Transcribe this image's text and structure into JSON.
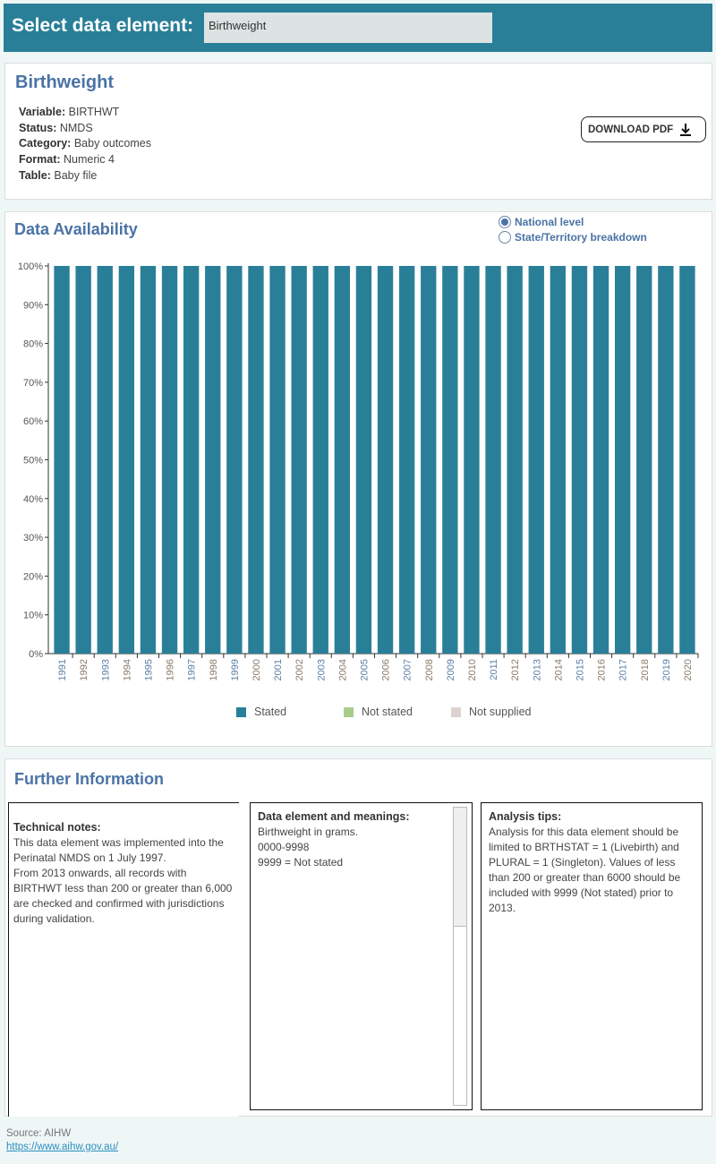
{
  "header": {
    "label": "Select data element:",
    "selected": "Birthweight"
  },
  "element": {
    "title": "Birthweight",
    "fields": [
      {
        "label": "Variable:",
        "value": "BIRTHWT"
      },
      {
        "label": "Status:",
        "value": "NMDS"
      },
      {
        "label": "Category:",
        "value": "Baby outcomes"
      },
      {
        "label": "Format:",
        "value": "Numeric 4"
      },
      {
        "label": "Table:",
        "value": "Baby file"
      }
    ],
    "download_label": "DOWNLOAD PDF"
  },
  "availability": {
    "title": "Data Availability",
    "radios": [
      {
        "label": "National level",
        "selected": true
      },
      {
        "label": "State/Territory breakdown",
        "selected": false
      }
    ]
  },
  "chart_data": {
    "type": "bar",
    "stacked": true,
    "categories": [
      "1991",
      "1992",
      "1993",
      "1994",
      "1995",
      "1996",
      "1997",
      "1998",
      "1999",
      "2000",
      "2001",
      "2002",
      "2003",
      "2004",
      "2005",
      "2006",
      "2007",
      "2008",
      "2009",
      "2010",
      "2011",
      "2012",
      "2013",
      "2014",
      "2015",
      "2016",
      "2017",
      "2018",
      "2019",
      "2020"
    ],
    "series": [
      {
        "name": "Stated",
        "color": "#2a7f98",
        "values": [
          100,
          100,
          100,
          100,
          100,
          100,
          100,
          100,
          100,
          100,
          100,
          100,
          100,
          100,
          100,
          100,
          100,
          100,
          100,
          100,
          100,
          100,
          100,
          100,
          100,
          100,
          100,
          100,
          100,
          100
        ]
      },
      {
        "name": "Not stated",
        "color": "#a8cc8c",
        "values": [
          0,
          0,
          0,
          0,
          0,
          0,
          0,
          0,
          0,
          0,
          0,
          0,
          0,
          0,
          0,
          0,
          0,
          0,
          0,
          0,
          0,
          0,
          0,
          0,
          0,
          0,
          0,
          0,
          0,
          0
        ]
      },
      {
        "name": "Not supplied",
        "color": "#dcd2cf",
        "values": [
          0,
          0,
          0,
          0,
          0,
          0,
          0,
          0,
          0,
          0,
          0,
          0,
          0,
          0,
          0,
          0,
          0,
          0,
          0,
          0,
          0,
          0,
          0,
          0,
          0,
          0,
          0,
          0,
          0,
          0
        ]
      }
    ],
    "yticks": [
      "0%",
      "10%",
      "20%",
      "30%",
      "40%",
      "50%",
      "60%",
      "70%",
      "80%",
      "90%",
      "100%"
    ],
    "ylim": [
      0,
      100
    ],
    "legend": "bottom",
    "grid": false
  },
  "further": {
    "title": "Further Information",
    "technical": {
      "heading": "Technical notes:",
      "text": "This data element was implemented into the Perinatal NMDS on 1 July 1997.\nFrom 2013 onwards, all records with BIRTHWT less than 200 or greater than 6,000 are checked and confirmed with jurisdictions during validation."
    },
    "meanings": {
      "heading": "Data element and meanings:",
      "lines": [
        "Birthweight in grams.",
        "0000-9998",
        "9999 = Not stated"
      ]
    },
    "tips": {
      "heading": "Analysis tips:",
      "text": "Analysis for this data element should be limited to BRTHSTAT = 1 (Livebirth) and PLURAL = 1 (Singleton).  Values of less than 200 or greater than 6000 should be included with 9999 (Not stated) prior to 2013."
    }
  },
  "footer": {
    "source": "Source: AIHW",
    "link": "https://www.aihw.gov.au/"
  }
}
